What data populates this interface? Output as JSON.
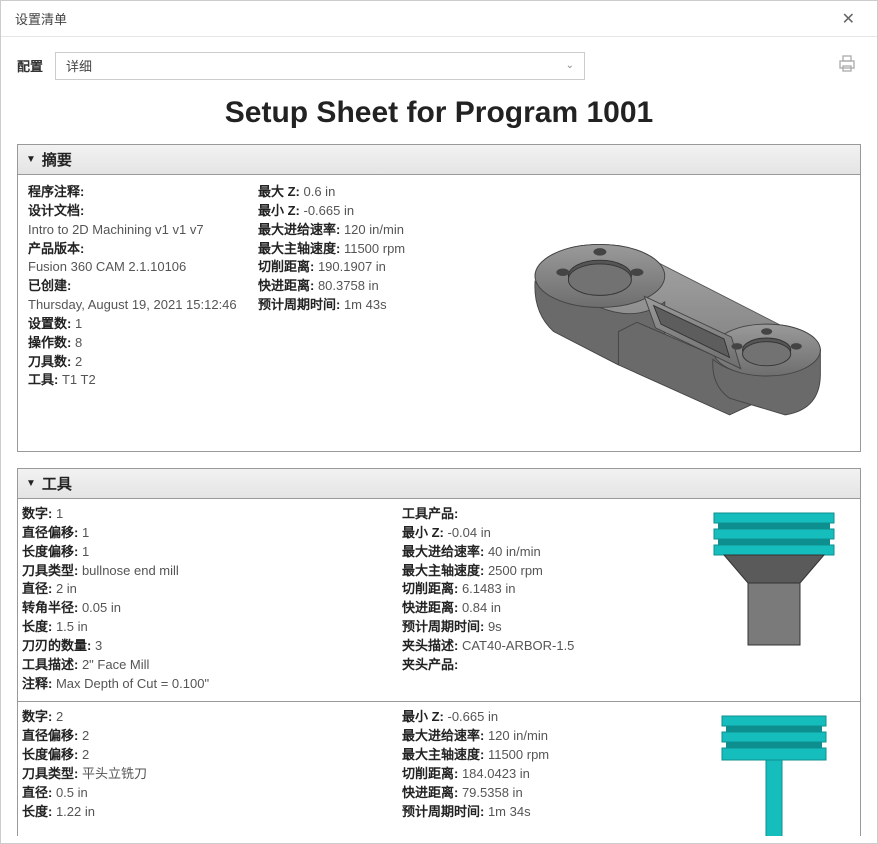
{
  "window": {
    "title": "设置清单"
  },
  "toolbar": {
    "config_label": "配置",
    "dropdown_value": "详细"
  },
  "main_title": "Setup Sheet for Program 1001",
  "summary": {
    "header": "摘要",
    "left": [
      {
        "k": "程序注释:",
        "v": ""
      },
      {
        "k": "设计文档:",
        "v": ""
      },
      {
        "k": "",
        "v": "Intro to 2D Machining v1 v1 v7"
      },
      {
        "k": "产品版本:",
        "v": ""
      },
      {
        "k": "",
        "v": "Fusion 360 CAM 2.1.10106"
      },
      {
        "k": "已创建:",
        "v": ""
      },
      {
        "k": "",
        "v": "Thursday, August 19, 2021 15:12:46"
      },
      {
        "k": "设置数:",
        "v": "1"
      },
      {
        "k": "操作数:",
        "v": "8"
      },
      {
        "k": "刀具数:",
        "v": "2"
      },
      {
        "k": "工具:",
        "v": "T1 T2"
      }
    ],
    "right": [
      {
        "k": "最大 Z:",
        "v": "0.6 in"
      },
      {
        "k": "最小 Z:",
        "v": "-0.665 in"
      },
      {
        "k": "最大进给速率:",
        "v": "120 in/min"
      },
      {
        "k": "最大主轴速度:",
        "v": "11500 rpm"
      },
      {
        "k": "切削距离:",
        "v": "190.1907 in"
      },
      {
        "k": "快进距离:",
        "v": "80.3758 in"
      },
      {
        "k": "预计周期时间:",
        "v": "1m 43s"
      }
    ],
    "part_colors": {
      "body": "#868686",
      "edge": "#444",
      "hole": "#6a6a6a"
    }
  },
  "tools": {
    "header": "工具",
    "entries": [
      {
        "left": [
          {
            "k": "数字:",
            "v": "1"
          },
          {
            "k": "直径偏移:",
            "v": "1"
          },
          {
            "k": "长度偏移:",
            "v": "1"
          },
          {
            "k": "刀具类型:",
            "v": "bullnose end mill"
          },
          {
            "k": "直径:",
            "v": "2 in"
          },
          {
            "k": "转角半径:",
            "v": "0.05 in"
          },
          {
            "k": "长度:",
            "v": "1.5 in"
          },
          {
            "k": "刀刃的数量:",
            "v": "3"
          },
          {
            "k": "工具描述:",
            "v": "2\" Face Mill"
          },
          {
            "k": "注释:",
            "v": "Max Depth of Cut = 0.100\""
          }
        ],
        "right": [
          {
            "k": "工具产品:",
            "v": ""
          },
          {
            "k": "最小 Z:",
            "v": "-0.04 in"
          },
          {
            "k": "最大进给速率:",
            "v": "40 in/min"
          },
          {
            "k": "最大主轴速度:",
            "v": "2500 rpm"
          },
          {
            "k": "切削距离:",
            "v": "6.1483 in"
          },
          {
            "k": "快进距离:",
            "v": "0.84 in"
          },
          {
            "k": "预计周期时间:",
            "v": "9s"
          },
          {
            "k": "夹头描述:",
            "v": "CAT40-ARBOR-1.5"
          },
          {
            "k": "夹头产品:",
            "v": ""
          }
        ],
        "render": {
          "holder_color": "#16bdbd",
          "holder_dark": "#0d8f8f",
          "shank_color": "#7a7a7a",
          "wide": true
        }
      },
      {
        "left": [
          {
            "k": "数字:",
            "v": "2"
          },
          {
            "k": "直径偏移:",
            "v": "2"
          },
          {
            "k": "长度偏移:",
            "v": "2"
          },
          {
            "k": "刀具类型:",
            "v": "平头立铣刀"
          },
          {
            "k": "直径:",
            "v": "0.5 in"
          },
          {
            "k": "长度:",
            "v": "1.22 in"
          }
        ],
        "right": [
          {
            "k": "最小 Z:",
            "v": "-0.665 in"
          },
          {
            "k": "最大进给速率:",
            "v": "120 in/min"
          },
          {
            "k": "最大主轴速度:",
            "v": "11500 rpm"
          },
          {
            "k": "切削距离:",
            "v": "184.0423 in"
          },
          {
            "k": "快进距离:",
            "v": "79.5358 in"
          },
          {
            "k": "预计周期时间:",
            "v": "1m 34s"
          }
        ],
        "render": {
          "holder_color": "#16bdbd",
          "holder_dark": "#0d8f8f",
          "shank_color": "#16bdbd",
          "wide": false
        }
      }
    ]
  }
}
